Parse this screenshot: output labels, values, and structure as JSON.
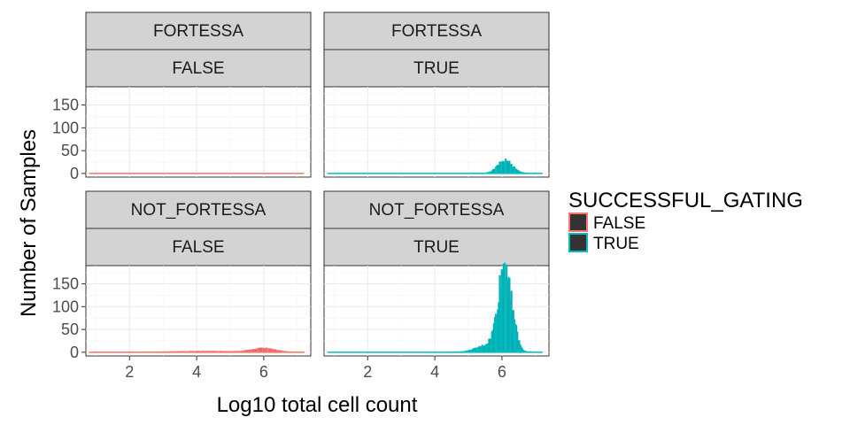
{
  "chart_data": {
    "type": "area",
    "xlabel": "Log10 total cell count",
    "ylabel": "Number of Samples",
    "xlim": [
      0.7,
      7.4
    ],
    "ylim": [
      -8,
      190
    ],
    "x_ticks": [
      2,
      4,
      6
    ],
    "y_ticks": [
      0,
      50,
      100,
      150
    ],
    "legend": {
      "title": "SUCCESSFUL_GATING",
      "position": "right",
      "entries": [
        {
          "label": "FALSE",
          "color": "#F8766D"
        },
        {
          "label": "TRUE",
          "color": "#00BFC4"
        }
      ]
    },
    "fill_color": "#333333",
    "facets": [
      {
        "row_label": "FORTESSA",
        "col_label": "FALSE",
        "series": "FALSE",
        "color": "#F8766D",
        "x_range": [
          0.8,
          7.2
        ],
        "peaks": []
      },
      {
        "row_label": "FORTESSA",
        "col_label": "TRUE",
        "series": "TRUE",
        "color": "#00BFC4",
        "x_range": [
          0.8,
          7.2
        ],
        "peaks": [
          {
            "center": 6.1,
            "width": 0.22,
            "height": 28
          }
        ]
      },
      {
        "row_label": "NOT_FORTESSA",
        "col_label": "FALSE",
        "series": "FALSE",
        "color": "#F8766D",
        "x_range": [
          0.8,
          7.2
        ],
        "peaks": [
          {
            "center": 6.0,
            "width": 0.35,
            "height": 8
          },
          {
            "center": 4.3,
            "width": 1.0,
            "height": 2
          }
        ]
      },
      {
        "row_label": "NOT_FORTESSA",
        "col_label": "TRUE",
        "series": "TRUE",
        "color": "#00BFC4",
        "x_range": [
          0.8,
          7.2
        ],
        "peaks": [
          {
            "center": 6.1,
            "width": 0.2,
            "height": 190
          },
          {
            "center": 5.6,
            "width": 0.35,
            "height": 15
          }
        ]
      }
    ]
  }
}
